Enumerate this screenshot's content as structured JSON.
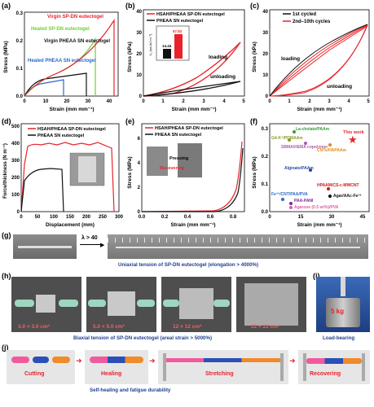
{
  "colors": {
    "red": "#e8232a",
    "green": "#6fcf3a",
    "black": "#111111",
    "blue": "#2a6ac8",
    "pink": "#e35aa6",
    "caption": "#1f3f8f"
  },
  "panels": {
    "a": {
      "label": "(a)",
      "ylabel": "Stress (MPa)",
      "xlabel": "Strain (mm mm⁻¹)",
      "xticks": [
        "0",
        "10",
        "20",
        "30",
        "40"
      ],
      "yticks": [
        "0.0",
        "0.1",
        "0.2",
        "0.3"
      ],
      "series": [
        {
          "name": "Virgin SP-DN eutectogel",
          "color": "red"
        },
        {
          "name": "Healed SP-DN eutectogel",
          "color": "green"
        },
        {
          "name": "Virgin PHEAA SN eutectogel",
          "color": "black"
        },
        {
          "name": "Healed PHEAA SN eutectogel",
          "color": "blue"
        }
      ]
    },
    "b": {
      "label": "(b)",
      "ylabel": "Stress (kPa)",
      "xlabel": "Strain (mm mm⁻¹)",
      "xticks": [
        "0",
        "1",
        "2",
        "3",
        "4",
        "5"
      ],
      "yticks": [
        "0",
        "10",
        "20",
        "30",
        "40"
      ],
      "legend": [
        "HSAH/PHEAA SP-DN eutectogel",
        "PHEAA SN eutectogel"
      ],
      "loading": "loading",
      "unloading": "unloading",
      "inset": {
        "ylabel": "U_hys (kJ m⁻³)",
        "values": [
          "14.44",
          "57.82"
        ],
        "ymax": "60"
      }
    },
    "c": {
      "label": "(c)",
      "ylabel": "Stress (kPa)",
      "xlabel": "Strain (mm mm⁻¹)",
      "xticks": [
        "0",
        "1",
        "2",
        "3",
        "4",
        "5"
      ],
      "yticks": [
        "0",
        "10",
        "20",
        "30",
        "40"
      ],
      "legend": [
        "1st cycled",
        "2nd–10th cycles"
      ],
      "loading": "loading",
      "unloading": "unloading"
    },
    "d": {
      "label": "(d)",
      "ylabel": "Force/thickness (N m⁻¹)",
      "xlabel": "Displacement (mm)",
      "xticks": [
        "0",
        "50",
        "100",
        "150",
        "200",
        "250",
        "300"
      ],
      "yticks": [
        "0",
        "100",
        "200",
        "300",
        "400",
        "500"
      ],
      "legend": [
        "HSAH/PHEAA SP-DN eutectogel",
        "PHEAA SN eutectogel"
      ]
    },
    "e": {
      "label": "(e)",
      "ylabel": "Stress (MPa)",
      "xlabel": "Strain (mm mm⁻¹)",
      "xticks": [
        "0.0",
        "0.2",
        "0.4",
        "0.6",
        "0.8"
      ],
      "yticks": [
        "0",
        "2",
        "4",
        "6"
      ],
      "legend": [
        "HSAH/PHEAA SP-DN eutectogel",
        "PHEAA SN eutectogel"
      ],
      "pressing": "Pressing",
      "recovering": "Recovering"
    },
    "f": {
      "label": "(f)",
      "ylabel": "Stress (MPa)",
      "xlabel": "Strain (mm mm⁻¹)",
      "xticks": [
        "0",
        "15",
        "30",
        "45"
      ],
      "yticks": [
        "0.0",
        "0.1",
        "0.2",
        "0.3"
      ],
      "this_work": "This work",
      "points": [
        {
          "label": "La-cholate/PAAm",
          "color": "#3a9a3a"
        },
        {
          "label": "G4-K⁺/PDMAAm",
          "color": "#8a9a2a"
        },
        {
          "label": "SBMA/HEMA copolymer",
          "color": "#b05ab0"
        },
        {
          "label": "CNTs/HAPAAm",
          "color": "#e08a1a"
        },
        {
          "label": "Alginate/PAAm",
          "color": "#2a4aa8"
        },
        {
          "label": "HPAAM/CS-c-MWCNT",
          "color": "#c81a1a"
        },
        {
          "label": "Fe³⁺/CNT/PAA/PVA",
          "color": "#2a6ac8"
        },
        {
          "label": "Agar/AAc-Fe³⁺",
          "color": "#111111"
        },
        {
          "label": "PAA-PANI",
          "color": "#7a2a9a"
        },
        {
          "label": "Agarose (0.5 wt%)/PVA",
          "color": "#e35aa6"
        }
      ]
    },
    "g": {
      "label": "(g)",
      "lambda": "λ > 40",
      "caption": "Uniaxial tension of SP-DN eutectogel (elongation > 4000%)"
    },
    "h": {
      "label": "(h)",
      "sizes": [
        "3.0 × 3.0 cm²",
        "5.0 × 5.0 cm²",
        "12 × 12 cm²",
        "22 × 22 cm²"
      ],
      "caption": "Biaxial tension of SP-DN eutectogel (areal strain > 5000%)"
    },
    "i": {
      "label": "(i)",
      "weight": "5 kg",
      "caption": "Load-bearing"
    },
    "j": {
      "label": "(j)",
      "steps": [
        "Cutting",
        "Healing",
        "Stretching",
        "Recovering"
      ],
      "caption": "Self-healing and fatigue durability"
    }
  }
}
